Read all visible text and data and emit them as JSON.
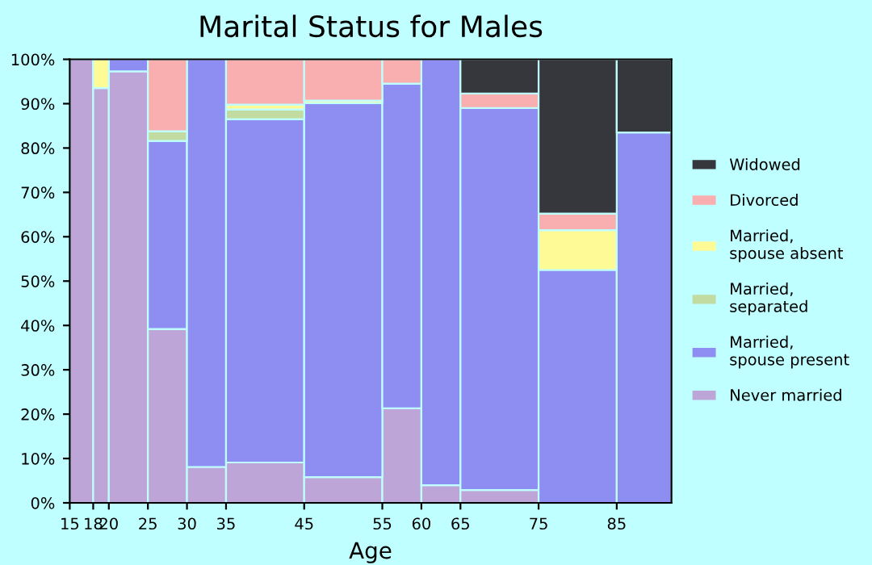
{
  "chart_data": {
    "type": "bar",
    "stacked": true,
    "title": "Marital Status for Males",
    "xlabel": "Age",
    "x": [
      16.5,
      19,
      22.5,
      27.5,
      32.5,
      40,
      50,
      57.5,
      62.5,
      70,
      80,
      88.5
    ],
    "xlim": [
      15,
      92
    ],
    "xticks": [
      15,
      18,
      20,
      25,
      30,
      35,
      45,
      55,
      60,
      65,
      75,
      85
    ],
    "ylim": [
      0,
      100
    ],
    "yticks": [
      {
        "value": 0,
        "label": "0%"
      },
      {
        "value": 10,
        "label": "10%"
      },
      {
        "value": 20,
        "label": "20%"
      },
      {
        "value": 30,
        "label": "30%"
      },
      {
        "value": 40,
        "label": "40%"
      },
      {
        "value": 50,
        "label": "50%"
      },
      {
        "value": 60,
        "label": "60%"
      },
      {
        "value": 70,
        "label": "70%"
      },
      {
        "value": 80,
        "label": "80%"
      },
      {
        "value": 90,
        "label": "90%"
      },
      {
        "value": 100,
        "label": "100%"
      }
    ],
    "grid": false,
    "legend": "right",
    "series": [
      {
        "name": "Never married",
        "color": "#bea5d8",
        "values": [
          100,
          93.5,
          97.3,
          39.2,
          8.1,
          9.1,
          5.8,
          21.3,
          4.0,
          2.9,
          null,
          null
        ]
      },
      {
        "name": "Married,\nspouse present",
        "color": "#8e8ef2",
        "values": [
          null,
          null,
          2.7,
          42.4,
          91.9,
          77.4,
          84.3,
          73.2,
          96.0,
          86.1,
          52.5,
          83.5
        ]
      },
      {
        "name": "Married,\nseparated",
        "color": "#c1dba0",
        "values": [
          null,
          null,
          null,
          2.2,
          null,
          2.2,
          null,
          null,
          null,
          null,
          null,
          null
        ]
      },
      {
        "name": "Married,\nspouse absent",
        "color": "#fefa96",
        "values": [
          null,
          6.5,
          null,
          null,
          null,
          1.1,
          0.6,
          null,
          null,
          null,
          9.0,
          null
        ]
      },
      {
        "name": "Divorced",
        "color": "#f9afaf",
        "values": [
          null,
          null,
          null,
          16.2,
          null,
          10.2,
          9.3,
          5.5,
          null,
          3.3,
          3.7,
          null
        ]
      },
      {
        "name": "Widowed",
        "color": "#36373c",
        "values": [
          null,
          null,
          null,
          null,
          null,
          null,
          null,
          null,
          null,
          7.7,
          34.8,
          16.5
        ]
      }
    ]
  }
}
